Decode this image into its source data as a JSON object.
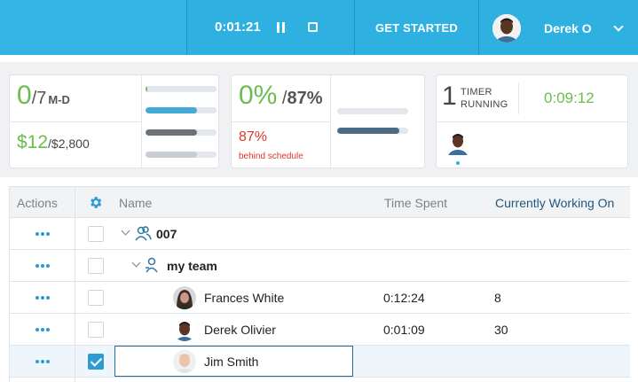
{
  "topbar": {
    "timer": "0:01:21",
    "get_started": "GET STARTED",
    "user_name": "Derek O"
  },
  "card1": {
    "done": "0",
    "total": "/7",
    "unit": "M-D",
    "spent": "$12",
    "budget": "/$2,800",
    "bars": [
      {
        "fill_pct": 2,
        "color": "#6bbd4f"
      },
      {
        "fill_pct": 73,
        "color": "#45a9d6"
      },
      {
        "fill_pct": 73,
        "color": "#6c7277"
      },
      {
        "fill_pct": 73,
        "color": "#c9ced4"
      }
    ]
  },
  "card2": {
    "actual": "0%",
    "planned": "87%",
    "percent_behind": "87%",
    "behind_label": "behind schedule",
    "bars": [
      {
        "fill_pct": 0,
        "color": "#e3e6ea"
      },
      {
        "fill_pct": 87,
        "color": "#4b6a84"
      }
    ]
  },
  "card3": {
    "count": "1",
    "label_line1": "TIMER",
    "label_line2": "RUNNING",
    "time": "0:09:12"
  },
  "table": {
    "headers": {
      "actions": "Actions",
      "name": "Name",
      "time_spent": "Time Spent",
      "working_on": "Currently Working On"
    },
    "rows": [
      {
        "name": "007",
        "time": "",
        "working": ""
      },
      {
        "name": "my team",
        "time": "",
        "working": ""
      },
      {
        "name": "Frances White",
        "time": "0:12:24",
        "working": "8"
      },
      {
        "name": "Derek Olivier",
        "time": "0:01:09",
        "working": "30"
      },
      {
        "name": "Jim Smith",
        "time": "",
        "working": ""
      }
    ]
  },
  "colors": {
    "brand": "#2eb0e0",
    "green": "#6bbd4f",
    "red": "#e0352b",
    "header_link": "#21577f"
  }
}
